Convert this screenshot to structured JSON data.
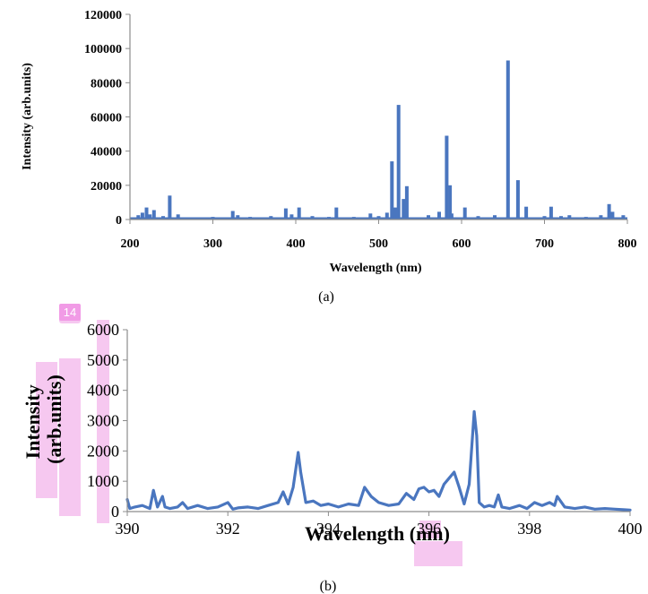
{
  "badge": "14",
  "colors": {
    "series": "#4a76bf",
    "axis": "#8c8c8c",
    "highlight": "#f6c8f0"
  },
  "chart_data": [
    {
      "type": "bar",
      "caption": "(a)",
      "xlabel": "Wavelength (nm)",
      "ylabel": "Intensity (arb.units)",
      "xlim": [
        200,
        800
      ],
      "ylim": [
        0,
        120000
      ],
      "xticks": [
        200,
        300,
        400,
        500,
        600,
        700,
        800
      ],
      "yticks": [
        0,
        20000,
        40000,
        60000,
        80000,
        100000,
        120000
      ],
      "grid": false,
      "x": [
        210,
        215,
        220,
        224,
        229,
        240,
        248,
        258,
        300,
        324,
        330,
        345,
        370,
        388,
        395,
        404,
        420,
        440,
        449,
        470,
        490,
        500,
        510,
        516,
        520,
        524,
        530,
        534,
        560,
        573,
        582,
        586,
        588,
        604,
        620,
        640,
        656,
        668,
        678,
        700,
        708,
        720,
        730,
        750,
        768,
        778,
        782,
        795
      ],
      "values": [
        2500,
        4000,
        7000,
        3000,
        5500,
        2000,
        14000,
        3000,
        1500,
        5000,
        2500,
        1500,
        2000,
        6500,
        3000,
        7000,
        2000,
        1500,
        7000,
        1500,
        3500,
        2000,
        4000,
        34000,
        7000,
        67000,
        12000,
        19500,
        2500,
        4500,
        49000,
        20000,
        3500,
        7000,
        2000,
        2500,
        93000,
        23000,
        7500,
        2000,
        7500,
        2000,
        2500,
        1500,
        2500,
        9000,
        4500,
        2500
      ]
    },
    {
      "type": "line",
      "caption": "(b)",
      "xlabel": "Wavelength (nm)",
      "ylabel": "Intensity (arb.units)",
      "xlim": [
        390,
        400
      ],
      "ylim": [
        0,
        6000
      ],
      "xticks": [
        390,
        392,
        394,
        396,
        398,
        400
      ],
      "yticks": [
        0,
        1000,
        2000,
        3000,
        4000,
        5000,
        6000
      ],
      "grid": false,
      "x": [
        390.0,
        390.05,
        390.15,
        390.3,
        390.45,
        390.52,
        390.6,
        390.7,
        390.75,
        390.85,
        391.0,
        391.1,
        391.2,
        391.4,
        391.6,
        391.8,
        392.0,
        392.1,
        392.2,
        392.4,
        392.6,
        392.8,
        393.0,
        393.1,
        393.2,
        393.3,
        393.4,
        393.45,
        393.55,
        393.7,
        393.85,
        394.0,
        394.2,
        394.4,
        394.6,
        394.72,
        394.85,
        395.0,
        395.2,
        395.4,
        395.55,
        395.7,
        395.8,
        395.9,
        396.0,
        396.1,
        396.2,
        396.3,
        396.4,
        396.5,
        396.6,
        396.7,
        396.8,
        396.9,
        396.95,
        397.0,
        397.1,
        397.2,
        397.3,
        397.38,
        397.45,
        397.6,
        397.8,
        397.95,
        398.1,
        398.25,
        398.4,
        398.5,
        398.55,
        398.7,
        398.9,
        399.1,
        399.3,
        399.5,
        399.7,
        399.9,
        400.0
      ],
      "y": [
        400,
        100,
        150,
        200,
        100,
        700,
        150,
        500,
        150,
        100,
        150,
        300,
        100,
        200,
        100,
        150,
        300,
        80,
        120,
        150,
        100,
        200,
        300,
        650,
        250,
        800,
        1950,
        1300,
        300,
        350,
        200,
        250,
        150,
        250,
        200,
        800,
        500,
        300,
        200,
        250,
        600,
        400,
        750,
        800,
        650,
        700,
        500,
        900,
        1100,
        1300,
        800,
        250,
        900,
        3300,
        2500,
        300,
        150,
        200,
        150,
        550,
        150,
        100,
        200,
        100,
        300,
        200,
        300,
        200,
        500,
        150,
        100,
        150,
        80,
        100,
        80,
        60,
        50
      ]
    }
  ]
}
